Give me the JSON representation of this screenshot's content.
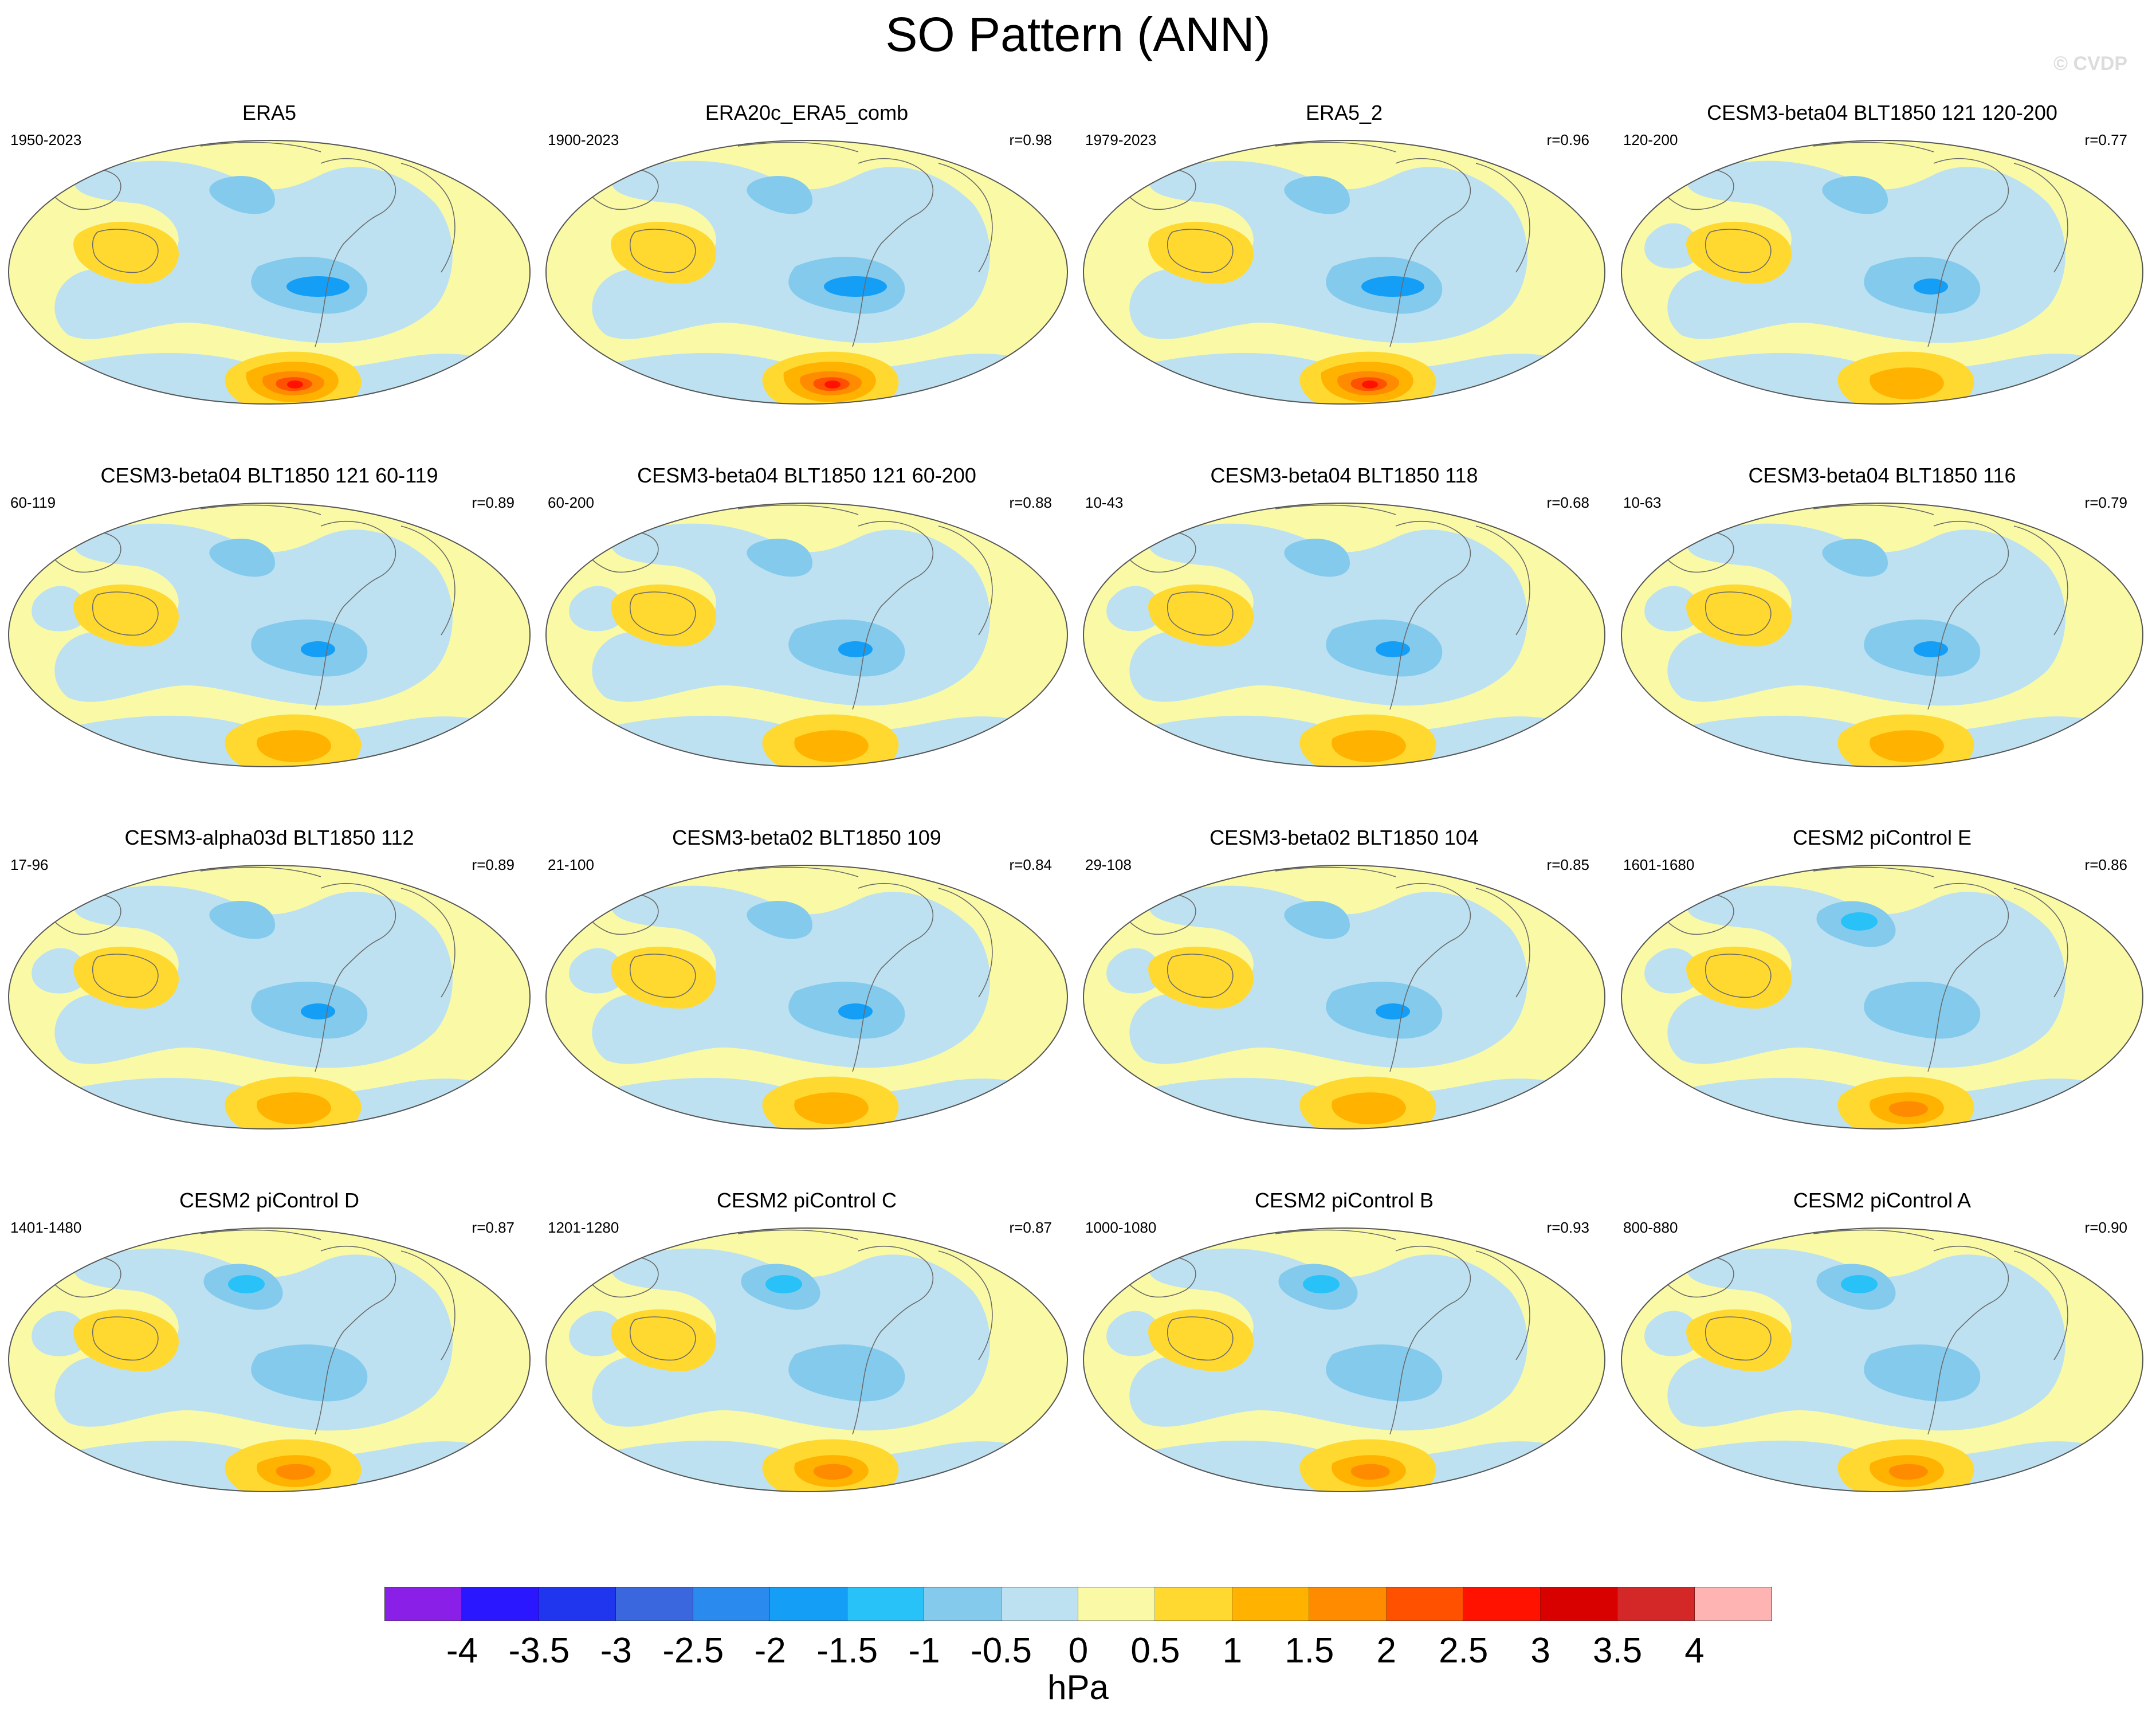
{
  "title": "SO Pattern (ANN)",
  "watermark": "© CVDP",
  "colors": {
    "ocean_neutral": "#fafaa6",
    "land_lines": "#6b6b6b"
  },
  "panels": [
    {
      "title": "ERA5",
      "years": "1950-2023",
      "corr": ""
    },
    {
      "title": "ERA20c_ERA5_comb",
      "years": "1900-2023",
      "corr": "r=0.98"
    },
    {
      "title": "ERA5_2",
      "years": "1979-2023",
      "corr": "r=0.96"
    },
    {
      "title": "CESM3-beta04 BLT1850 121 120-200",
      "years": "120-200",
      "corr": "r=0.77"
    },
    {
      "title": "CESM3-beta04 BLT1850 121 60-119",
      "years": "60-119",
      "corr": "r=0.89"
    },
    {
      "title": "CESM3-beta04 BLT1850 121 60-200",
      "years": "60-200",
      "corr": "r=0.88"
    },
    {
      "title": "CESM3-beta04 BLT1850 118",
      "years": "10-43",
      "corr": "r=0.68"
    },
    {
      "title": "CESM3-beta04 BLT1850 116",
      "years": "10-63",
      "corr": "r=0.79"
    },
    {
      "title": "CESM3-alpha03d BLT1850 112",
      "years": "17-96",
      "corr": "r=0.89"
    },
    {
      "title": "CESM3-beta02 BLT1850 109",
      "years": "21-100",
      "corr": "r=0.84"
    },
    {
      "title": "CESM3-beta02 BLT1850 104",
      "years": "29-108",
      "corr": "r=0.85"
    },
    {
      "title": "CESM2 piControl E",
      "years": "1601-1680",
      "corr": "r=0.86"
    },
    {
      "title": "CESM2 piControl D",
      "years": "1401-1480",
      "corr": "r=0.87"
    },
    {
      "title": "CESM2 piControl C",
      "years": "1201-1280",
      "corr": "r=0.87"
    },
    {
      "title": "CESM2 piControl B",
      "years": "1000-1080",
      "corr": "r=0.93"
    },
    {
      "title": "CESM2 piControl A",
      "years": "800-880",
      "corr": "r=0.90"
    }
  ],
  "colorbar": {
    "units": "hPa",
    "ticks": [
      "-4",
      "-3.5",
      "-3",
      "-2.5",
      "-2",
      "-1.5",
      "-1",
      "-0.5",
      "0",
      "0.5",
      "1",
      "1.5",
      "2",
      "2.5",
      "3",
      "3.5",
      "4"
    ],
    "colors": [
      "#8a20e8",
      "#2a16ff",
      "#2036ee",
      "#3a66de",
      "#2a8aee",
      "#149ef6",
      "#28c2f8",
      "#84caec",
      "#bde1f1",
      "#fafaa6",
      "#ffd930",
      "#ffb200",
      "#ff8c00",
      "#ff5100",
      "#ff1200",
      "#d90000",
      "#d42828",
      "#ffb4b4"
    ]
  }
}
